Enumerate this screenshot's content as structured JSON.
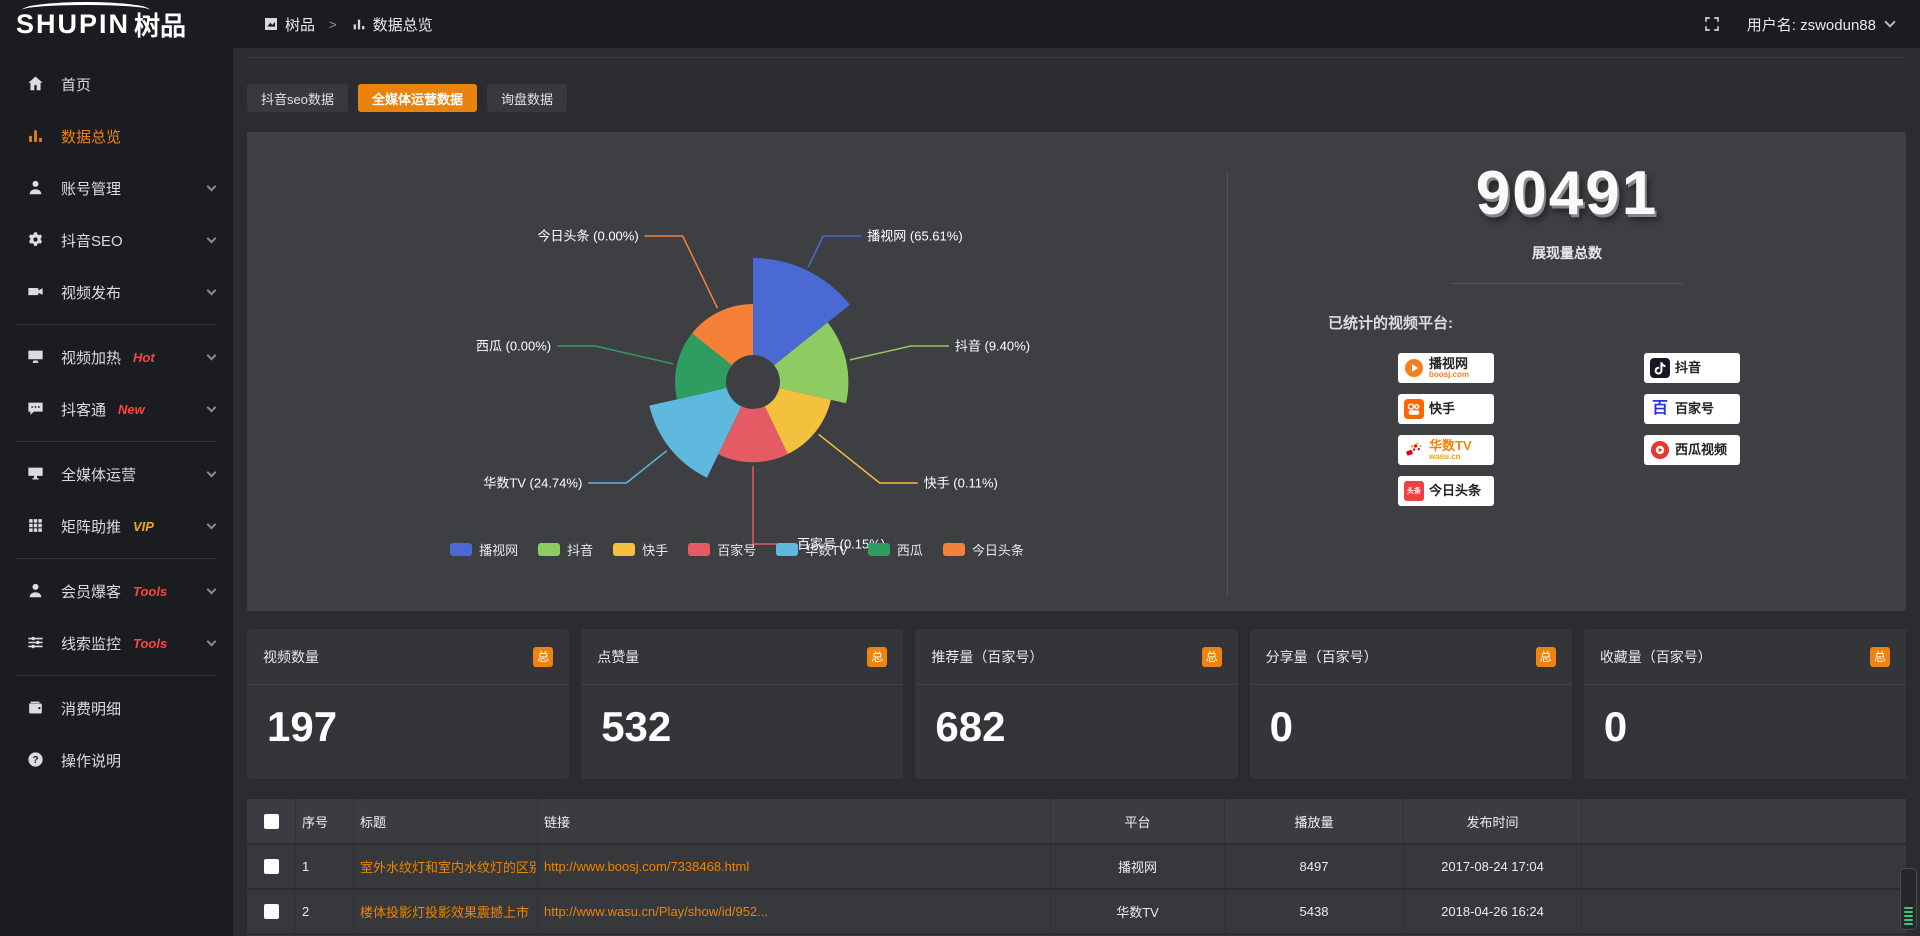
{
  "colors": {
    "accent": "#ef8312",
    "link": "#f08300",
    "hot_badge": "#ff4342",
    "vip_badge": "#f0a818",
    "page_bg": "#2b2c30",
    "panel_bg": "#3e3f43",
    "dark_bg": "#1b1c20"
  },
  "topbar": {
    "logo_text": "SHUPIN",
    "logo_suffix": "树品",
    "breadcrumb": [
      "树品",
      "数据总览"
    ],
    "breadcrumb_separator": ">",
    "user_label": "用户名: zswodun88"
  },
  "sidebar": {
    "items": [
      {
        "id": "home",
        "label": "首页",
        "icon": "home-icon"
      },
      {
        "id": "data-overview",
        "label": "数据总览",
        "icon": "bar-chart-icon",
        "active": true
      },
      {
        "id": "account-manage",
        "label": "账号管理",
        "icon": "user-icon",
        "chevron": true
      },
      {
        "id": "douyin-seo",
        "label": "抖音SEO",
        "icon": "gear-icon",
        "chevron": true
      },
      {
        "id": "video-publish",
        "label": "视频发布",
        "icon": "video-camera-icon",
        "chevron": true,
        "divider_after": true
      },
      {
        "id": "video-heat",
        "label": "视频加热",
        "icon": "display-icon",
        "badge": "Hot",
        "badge_color": "#ff4342",
        "chevron": true
      },
      {
        "id": "douketong",
        "label": "抖客通",
        "icon": "chat-icon",
        "badge": "New",
        "badge_color": "#ff4342",
        "chevron": true,
        "divider_after": true
      },
      {
        "id": "media-operation",
        "label": "全媒体运营",
        "icon": "screen-icon",
        "chevron": true
      },
      {
        "id": "matrix-boost",
        "label": "矩阵助推",
        "icon": "grid-icon",
        "badge": "VIP",
        "badge_color": "#f0a818",
        "chevron": true,
        "divider_after": true
      },
      {
        "id": "member-baoke",
        "label": "会员爆客",
        "icon": "person-icon",
        "badge": "Tools",
        "badge_color": "#ff4342",
        "chevron": true
      },
      {
        "id": "clue-monitor",
        "label": "线索监控",
        "icon": "sliders-icon",
        "badge": "Tools",
        "badge_color": "#ff4342",
        "chevron": true,
        "divider_after": true
      },
      {
        "id": "consume-detail",
        "label": "消费明细",
        "icon": "wallet-icon"
      },
      {
        "id": "help",
        "label": "操作说明",
        "icon": "question-icon"
      }
    ]
  },
  "tabs": [
    {
      "id": "douyin-seo-data",
      "label": "抖音seo数据"
    },
    {
      "id": "media-operation-data",
      "label": "全媒体运营数据",
      "active": true
    },
    {
      "id": "inquiry-data",
      "label": "询盘数据"
    }
  ],
  "chart_data": {
    "type": "pie",
    "variant": "nightingale-rose-donut",
    "title": "",
    "legend_position": "bottom",
    "label_format": "{name} ({value}%)",
    "labels": [
      "播视网",
      "抖音",
      "快手",
      "百家号",
      "华数TV",
      "西瓜",
      "今日头条"
    ],
    "values": [
      65.61,
      9.4,
      0.11,
      0.15,
      24.74,
      0.0,
      0.0
    ],
    "unit": "%",
    "colors": [
      "#4a69d2",
      "#8ecb63",
      "#f3c13e",
      "#e45b63",
      "#5fb9de",
      "#2f9d5f",
      "#f58038"
    ]
  },
  "summary": {
    "total_value": "90491",
    "total_label": "展现量总数",
    "platforms_label": "已统计的视频平台:",
    "platforms": [
      {
        "id": "boosj",
        "name": "播视网",
        "sub": "boosj.com",
        "sub_color": "#f57e20"
      },
      {
        "id": "douyin",
        "name": "抖音"
      },
      {
        "id": "kuaishou",
        "name": "快手"
      },
      {
        "id": "baijiahao",
        "name": "百家号"
      },
      {
        "id": "wasu-tv",
        "name": "华数TV",
        "sub": "wasu.cn",
        "sub_color": "#f5a300",
        "name_color": "#f5820a"
      },
      {
        "id": "xigua",
        "name": "西瓜视频"
      },
      {
        "id": "toutiao",
        "name": "今日头条"
      }
    ]
  },
  "stat_cards": [
    {
      "id": "video-count",
      "label": "视频数量",
      "badge": "总",
      "value": "197"
    },
    {
      "id": "like-count",
      "label": "点赞量",
      "badge": "总",
      "value": "532"
    },
    {
      "id": "recommend-count",
      "label": "推荐量（百家号）",
      "badge": "总",
      "value": "682"
    },
    {
      "id": "share-count",
      "label": "分享量（百家号）",
      "badge": "总",
      "value": "0"
    },
    {
      "id": "favorite-count",
      "label": "收藏量（百家号）",
      "badge": "总",
      "value": "0"
    }
  ],
  "table": {
    "columns": [
      "序号",
      "标题",
      "链接",
      "平台",
      "播放量",
      "发布时间"
    ],
    "rows": [
      {
        "no": "1",
        "title": "室外水纹灯和室内水纹灯的区别和简介",
        "link": "http://www.boosj.com/7338468.html",
        "platform": "播视网",
        "plays": "8497",
        "time": "2017-08-24 17:04"
      },
      {
        "no": "2",
        "title": "楼体投影灯投影效果震撼上市",
        "link": "http://www.wasu.cn/Play/show/id/952...",
        "platform": "华数TV",
        "plays": "5438",
        "time": "2018-04-26 16:24"
      }
    ]
  }
}
